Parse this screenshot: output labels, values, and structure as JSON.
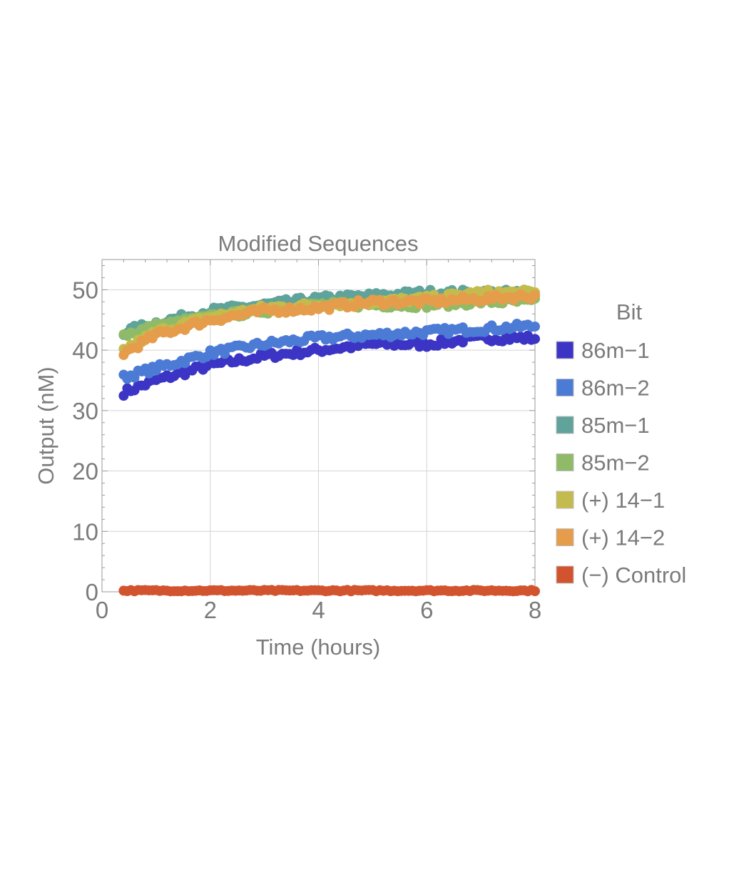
{
  "chart_data": {
    "type": "scatter",
    "title": "Modified Sequences",
    "xlabel": "Time (hours)",
    "ylabel": "Output (nM)",
    "xlim": [
      0,
      8
    ],
    "ylim": [
      0,
      55
    ],
    "x_ticks": [
      0,
      2,
      4,
      6,
      8
    ],
    "y_ticks": [
      0,
      10,
      20,
      30,
      40,
      50
    ],
    "x_tick_labels": [
      "0",
      "2",
      "4",
      "6",
      "8"
    ],
    "y_tick_labels": [
      "0",
      "10",
      "20",
      "30",
      "40",
      "50"
    ],
    "grid": true,
    "legend": {
      "title": "Bit",
      "position": "right"
    },
    "x_start": 0.4,
    "x_end": 8.0,
    "series": [
      {
        "name": "86m−1",
        "color": "#3b34c4",
        "x": [
          0.4,
          1,
          2,
          3,
          4,
          5,
          6,
          7,
          8
        ],
        "values": [
          33,
          35,
          37.5,
          39,
          40,
          41,
          41,
          42,
          42
        ]
      },
      {
        "name": "86m−2",
        "color": "#4c7bd6",
        "x": [
          0.4,
          1,
          2,
          3,
          4,
          5,
          6,
          7,
          8
        ],
        "values": [
          35.5,
          37,
          39.5,
          41,
          42,
          42.5,
          43,
          43.5,
          44
        ]
      },
      {
        "name": "85m−1",
        "color": "#5fa39a",
        "x": [
          0.4,
          1,
          2,
          3,
          4,
          5,
          6,
          7,
          8
        ],
        "values": [
          43,
          44.5,
          46.5,
          47.5,
          48.5,
          49,
          49.5,
          49.5,
          49.5
        ]
      },
      {
        "name": "85m−2",
        "color": "#8fbb68",
        "x": [
          0.4,
          1,
          2,
          3,
          4,
          5,
          6,
          7,
          8
        ],
        "values": [
          42.5,
          44,
          45.5,
          46.5,
          47.5,
          47.5,
          47.5,
          48,
          48
        ]
      },
      {
        "name": "(+) 14−1",
        "color": "#c3bb4d",
        "x": [
          0.4,
          1,
          2,
          3,
          4,
          5,
          6,
          7,
          8
        ],
        "values": [
          40,
          43,
          45.5,
          47,
          47.5,
          48,
          48.5,
          49.5,
          49.5
        ]
      },
      {
        "name": "(+) 14−2",
        "color": "#e59d4b",
        "x": [
          0.4,
          1,
          2,
          3,
          4,
          5,
          6,
          7,
          8
        ],
        "values": [
          39.5,
          42.5,
          45,
          46.5,
          47,
          48,
          48,
          48.5,
          49
        ]
      },
      {
        "name": "(−) Control",
        "color": "#d2542e",
        "x": [
          0.4,
          1,
          2,
          3,
          4,
          5,
          6,
          7,
          8
        ],
        "values": [
          0.2,
          0.2,
          0.2,
          0.2,
          0.2,
          0.2,
          0.2,
          0.2,
          0.2
        ]
      }
    ]
  }
}
